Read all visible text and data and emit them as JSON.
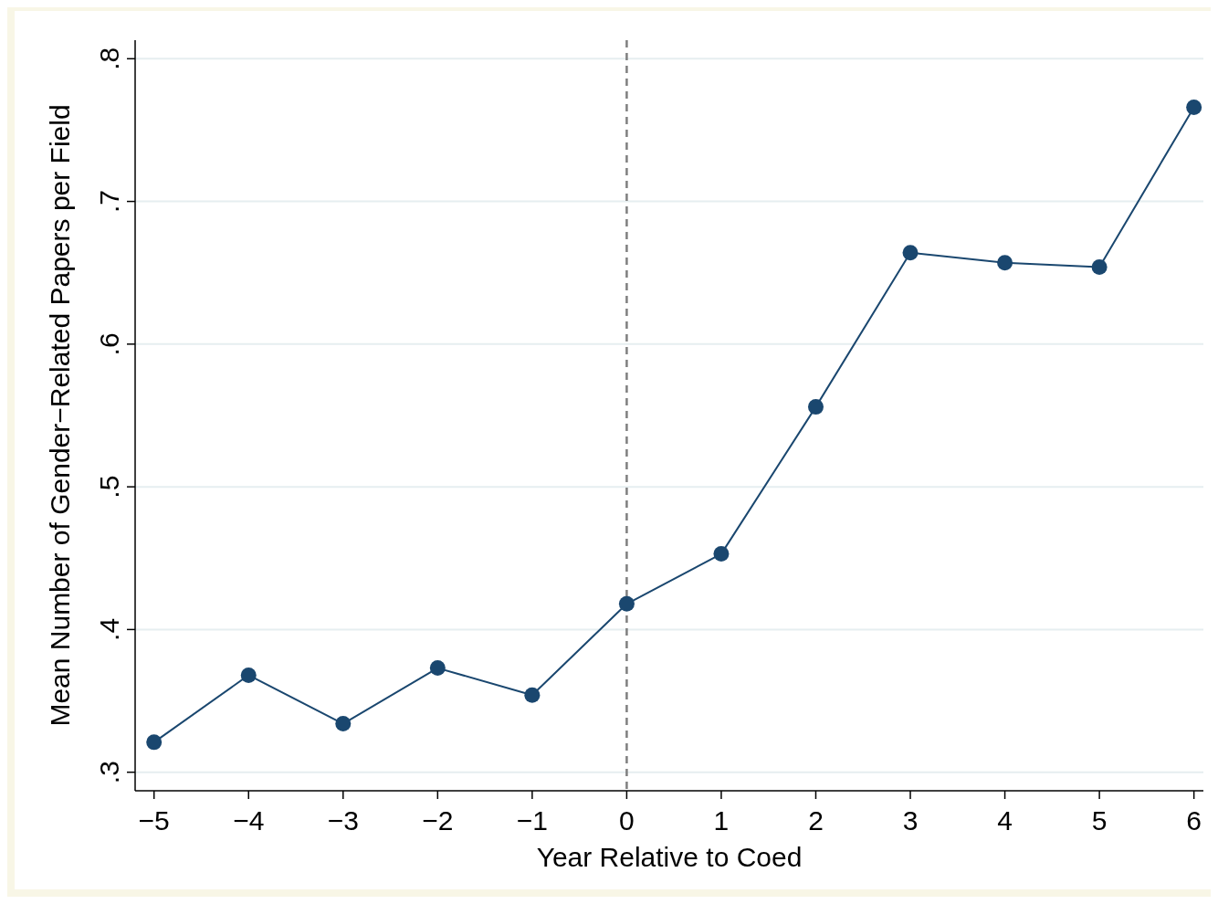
{
  "chart_data": {
    "type": "line",
    "xlabel": "Year Relative to Coed",
    "ylabel": "Mean Number of Gender−Related Papers per Field",
    "x": [
      -5,
      -4,
      -3,
      -2,
      -1,
      0,
      1,
      2,
      3,
      4,
      5,
      6
    ],
    "series": [
      {
        "color": "#1a476f",
        "values": [
          0.321,
          0.368,
          0.334,
          0.373,
          0.354,
          0.418,
          0.453,
          0.556,
          0.664,
          0.657,
          0.654,
          0.766
        ]
      }
    ],
    "xlim": [
      -5.2,
      6.1
    ],
    "ylim": [
      0.287,
      0.813
    ],
    "xticks": [
      {
        "value": -5,
        "label": "−5"
      },
      {
        "value": -4,
        "label": "−4"
      },
      {
        "value": -3,
        "label": "−3"
      },
      {
        "value": -2,
        "label": "−2"
      },
      {
        "value": -1,
        "label": "−1"
      },
      0,
      1,
      2,
      3,
      4,
      5,
      6
    ],
    "yticks": [
      {
        "value": 0.3,
        "label": ".3"
      },
      {
        "value": 0.4,
        "label": ".4"
      },
      {
        "value": 0.5,
        "label": ".5"
      },
      {
        "value": 0.6,
        "label": ".6"
      },
      {
        "value": 0.7,
        "label": ".7"
      },
      {
        "value": 0.8,
        "label": ".8"
      }
    ],
    "ref_lines": [
      {
        "axis": "x",
        "value": 0,
        "color": "#7f7f7f",
        "line_style": "dashed"
      }
    ],
    "grid": "y",
    "marker": "circle",
    "line_style": "solid"
  }
}
